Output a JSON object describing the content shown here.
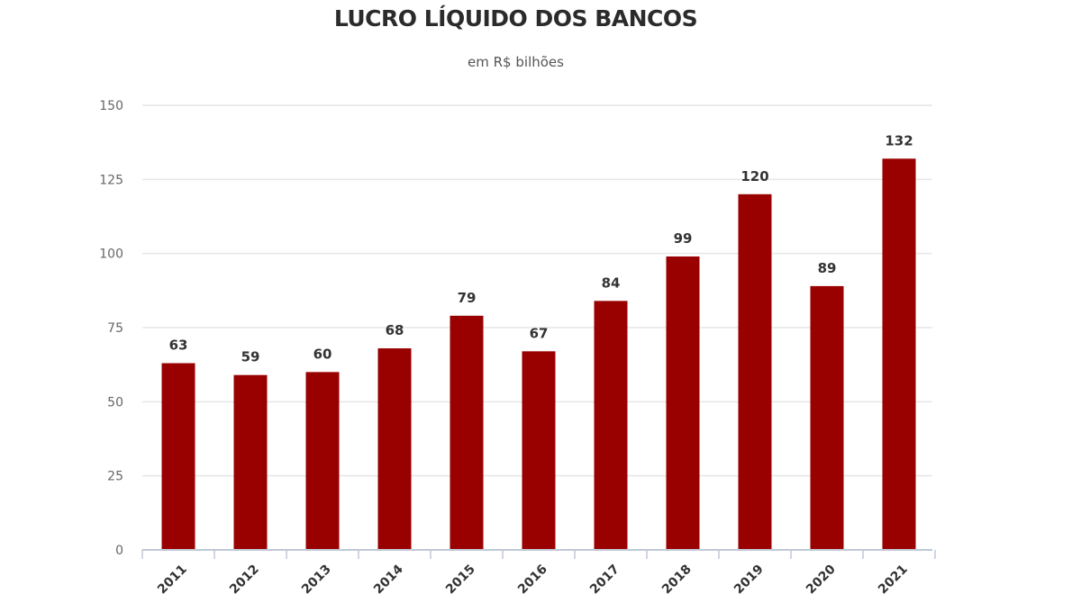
{
  "chart_data": {
    "type": "bar",
    "title": "LUCRO LÍQUIDO DOS BANCOS",
    "subtitle": "em R$ bilhões",
    "xlabel": "",
    "ylabel": "",
    "categories": [
      "2011",
      "2012",
      "2013",
      "2014",
      "2015",
      "2016",
      "2017",
      "2018",
      "2019",
      "2020",
      "2021"
    ],
    "values": [
      63,
      59,
      60,
      68,
      79,
      67,
      84,
      99,
      120,
      89,
      132
    ],
    "data_labels": [
      "63",
      "59",
      "60",
      "68",
      "79",
      "67",
      "84",
      "99",
      "120",
      "89",
      "132"
    ],
    "ylim": [
      0,
      150
    ],
    "yticks": [
      0,
      25,
      50,
      75,
      100,
      125,
      150
    ],
    "ytick_labels": [
      "0",
      "25",
      "50",
      "75",
      "100",
      "125",
      "150"
    ],
    "grid": true,
    "legend": "none",
    "bar_color": "#990000",
    "grid_color": "#e6e6e6"
  }
}
